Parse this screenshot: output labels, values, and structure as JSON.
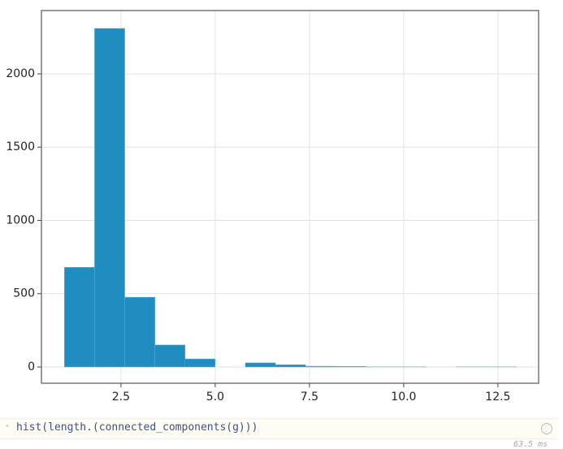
{
  "chart_data": {
    "type": "histogram",
    "bins": [
      1.0,
      1.8,
      2.6,
      3.4,
      4.2,
      5.0,
      5.8,
      6.6,
      7.4,
      8.2,
      9.0,
      9.8,
      10.6,
      11.4,
      12.2,
      13.0
    ],
    "values": [
      680,
      2310,
      476,
      150,
      55,
      0,
      28,
      15,
      5,
      4,
      1,
      1,
      0,
      1,
      1
    ],
    "color": "#1f8dbf",
    "xlim": [
      0.39,
      13.58
    ],
    "ylim": [
      -111,
      2432
    ],
    "xticks": [
      2.5,
      {
        "value": 5,
        "label": "5.0"
      },
      7.5,
      {
        "value": 10,
        "label": "10.0"
      },
      12.5
    ],
    "yticks": [
      0,
      500,
      1000,
      1500,
      2000
    ],
    "grid": true
  },
  "cell": {
    "code": "hist(length.(connected_components(g)))",
    "runtime": "63.5 ms"
  }
}
